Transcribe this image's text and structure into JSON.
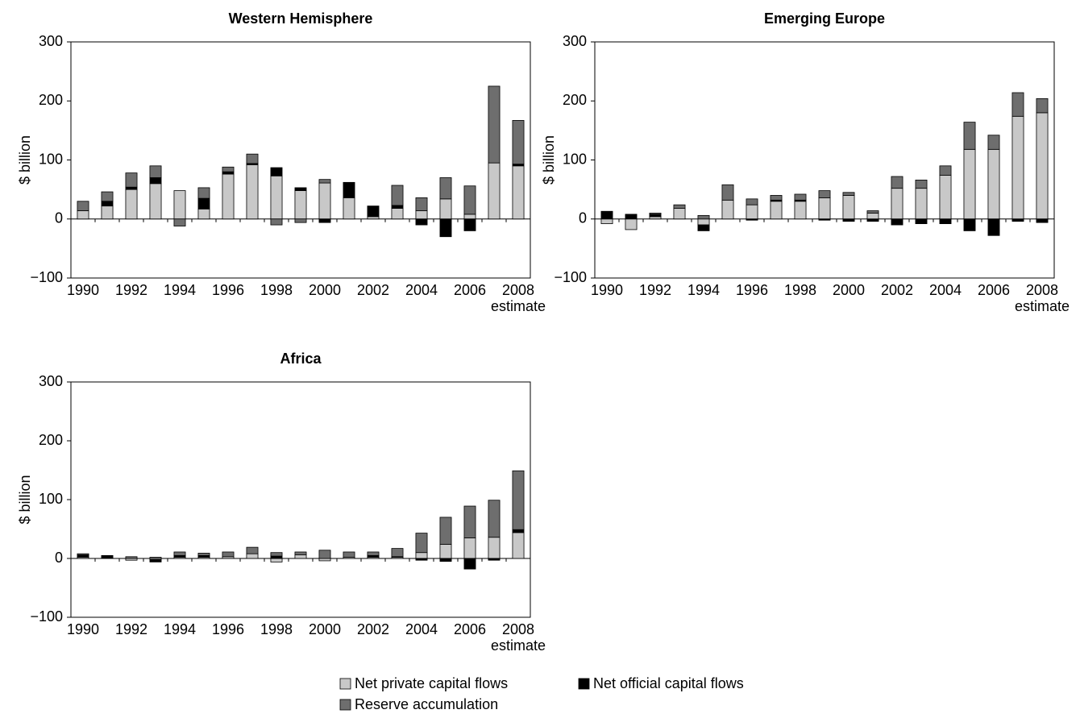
{
  "chart_data": [
    {
      "type": "bar",
      "stacked": true,
      "title": "Western Hemisphere",
      "ylabel": "$ billion",
      "categories": [
        "1990",
        null,
        "1992",
        null,
        "1994",
        null,
        "1996",
        null,
        "1998",
        null,
        "2000",
        null,
        "2002",
        null,
        "2004",
        null,
        "2006",
        null,
        "2008"
      ],
      "x_note": "estimate",
      "ylim": [
        -100,
        300
      ],
      "yticks": [
        {
          "value": -100,
          "label": "−100"
        },
        0,
        100,
        200,
        300
      ],
      "series": [
        {
          "values": [
            14,
            22,
            50,
            60,
            48,
            17,
            76,
            92,
            73,
            48,
            61,
            36,
            4,
            18,
            14,
            34,
            8,
            95,
            90
          ]
        },
        {
          "values": [
            0,
            8,
            4,
            10,
            0,
            18,
            4,
            2,
            14,
            5,
            -6,
            26,
            18,
            5,
            -10,
            -30,
            -20,
            0,
            3
          ]
        },
        {
          "values": [
            16,
            16,
            24,
            20,
            -12,
            18,
            8,
            16,
            -10,
            -6,
            6,
            0,
            0,
            34,
            22,
            36,
            48,
            130,
            74
          ]
        }
      ]
    },
    {
      "type": "bar",
      "stacked": true,
      "title": "Emerging Europe",
      "ylabel": "$ billion",
      "categories": [
        "1990",
        null,
        "1992",
        null,
        "1994",
        null,
        "1996",
        null,
        "1998",
        null,
        "2000",
        null,
        "2002",
        null,
        "2004",
        null,
        "2006",
        null,
        "2008"
      ],
      "x_note": "estimate",
      "ylim": [
        -100,
        300
      ],
      "yticks": [
        {
          "value": -100,
          "label": "−100"
        },
        0,
        100,
        200,
        300
      ],
      "series": [
        {
          "values": [
            -8,
            -18,
            4,
            18,
            -10,
            32,
            24,
            30,
            30,
            36,
            40,
            10,
            52,
            52,
            74,
            118,
            118,
            174,
            180
          ]
        },
        {
          "values": [
            12,
            8,
            4,
            0,
            -10,
            0,
            -2,
            2,
            2,
            -2,
            -4,
            -4,
            -10,
            -8,
            -8,
            -20,
            -28,
            -4,
            -6
          ]
        },
        {
          "values": [
            1,
            0,
            2,
            6,
            6,
            26,
            10,
            8,
            10,
            12,
            5,
            4,
            20,
            14,
            16,
            46,
            24,
            40,
            24
          ]
        }
      ]
    },
    {
      "type": "bar",
      "stacked": true,
      "title": "Africa",
      "ylabel": "$ billion",
      "categories": [
        "1990",
        null,
        "1992",
        null,
        "1994",
        null,
        "1996",
        null,
        "1998",
        null,
        "2000",
        null,
        "2002",
        null,
        "2004",
        null,
        "2006",
        null,
        "2008"
      ],
      "x_note": "estimate",
      "ylim": [
        -100,
        300
      ],
      "yticks": [
        {
          "value": -100,
          "label": "−100"
        },
        0,
        100,
        200,
        300
      ],
      "series": [
        {
          "values": [
            2,
            1,
            -3,
            -2,
            2,
            2,
            3,
            8,
            -6,
            6,
            -4,
            2,
            2,
            2,
            10,
            24,
            35,
            36,
            44
          ]
        },
        {
          "values": [
            4,
            3,
            0,
            -4,
            3,
            3,
            0,
            0,
            4,
            0,
            0,
            0,
            3,
            1,
            -3,
            -5,
            -18,
            -3,
            5
          ]
        },
        {
          "values": [
            2,
            1,
            3,
            2,
            6,
            4,
            8,
            11,
            6,
            5,
            14,
            9,
            6,
            14,
            33,
            46,
            54,
            63,
            100
          ]
        }
      ]
    }
  ],
  "legend": {
    "series": [
      {
        "name": "Net private capital flows",
        "color": "#c8c8c8"
      },
      {
        "name": "Net official capital flows",
        "color": "#000000"
      },
      {
        "name": "Reserve accumulation",
        "color": "#6e6e6e"
      }
    ]
  }
}
